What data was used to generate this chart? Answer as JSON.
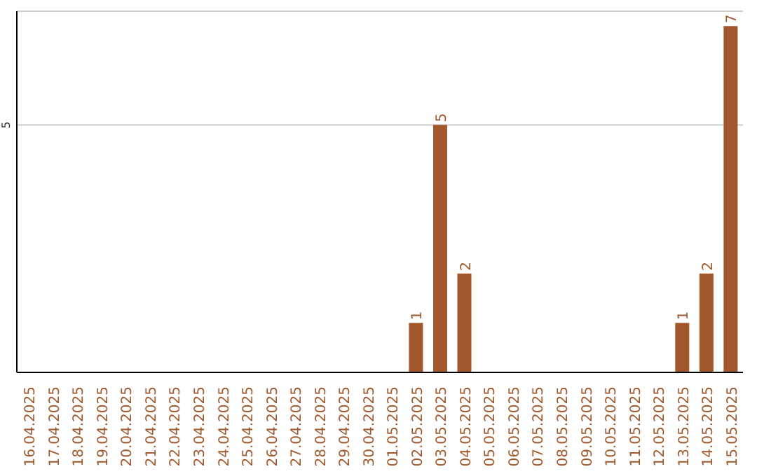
{
  "chart_data": {
    "type": "bar",
    "categories": [
      "16.04.2025",
      "17.04.2025",
      "18.04.2025",
      "19.04.2025",
      "20.04.2025",
      "21.04.2025",
      "22.04.2025",
      "23.04.2025",
      "24.04.2025",
      "25.04.2025",
      "26.04.2025",
      "27.04.2025",
      "28.04.2025",
      "29.04.2025",
      "30.04.2025",
      "01.05.2025",
      "02.05.2025",
      "03.05.2025",
      "04.05.2025",
      "05.05.2025",
      "06.05.2025",
      "07.05.2025",
      "08.05.2025",
      "09.05.2025",
      "10.05.2025",
      "11.05.2025",
      "12.05.2025",
      "13.05.2025",
      "14.05.2025",
      "15.05.2025"
    ],
    "values": [
      null,
      null,
      null,
      null,
      null,
      null,
      null,
      null,
      null,
      null,
      null,
      null,
      null,
      null,
      null,
      null,
      1,
      5,
      2,
      null,
      null,
      null,
      null,
      null,
      null,
      null,
      null,
      1,
      2,
      7
    ],
    "color": "#a0582c",
    "ylim": [
      0,
      7.3
    ],
    "yticks": [
      5
    ],
    "grid": "y",
    "data_labels": true
  }
}
